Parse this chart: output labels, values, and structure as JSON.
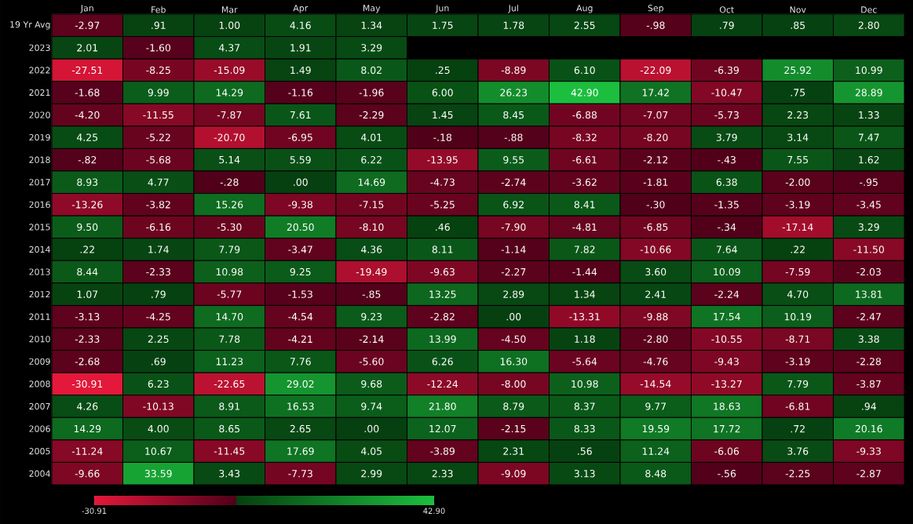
{
  "chart_data": {
    "type": "heatmap",
    "categories": [
      "Jan",
      "Feb",
      "Mar",
      "Apr",
      "May",
      "Jun",
      "Jul",
      "Aug",
      "Sep",
      "Oct",
      "Nov",
      "Dec"
    ],
    "y_categories": [
      "19 Yr Avg",
      "2023",
      "2022",
      "2021",
      "2020",
      "2019",
      "2018",
      "2017",
      "2016",
      "2015",
      "2014",
      "2013",
      "2012",
      "2011",
      "2010",
      "2009",
      "2008",
      "2007",
      "2006",
      "2005",
      "2004"
    ],
    "cells": [
      [
        -2.97,
        0.91,
        1.0,
        4.16,
        1.34,
        1.75,
        1.78,
        2.55,
        -0.98,
        0.79,
        0.85,
        2.8
      ],
      [
        2.01,
        -1.6,
        4.37,
        1.91,
        3.29,
        null,
        null,
        null,
        null,
        null,
        null,
        null
      ],
      [
        -27.51,
        -8.25,
        -15.09,
        1.49,
        8.02,
        0.25,
        -8.89,
        6.1,
        -22.09,
        -6.39,
        25.92,
        10.99
      ],
      [
        -1.68,
        9.99,
        14.29,
        -1.16,
        -1.96,
        6.0,
        26.23,
        42.9,
        17.42,
        -10.47,
        0.75,
        28.89
      ],
      [
        -4.2,
        -11.55,
        -7.87,
        7.61,
        -2.29,
        1.45,
        8.45,
        -6.88,
        -7.07,
        -5.73,
        2.23,
        1.33
      ],
      [
        4.25,
        -5.22,
        -20.7,
        -6.95,
        4.01,
        -0.18,
        -0.88,
        -8.32,
        -8.2,
        3.79,
        3.14,
        7.47
      ],
      [
        -0.82,
        -5.68,
        5.14,
        5.59,
        6.22,
        -13.95,
        9.55,
        -6.61,
        -2.12,
        -0.43,
        7.55,
        1.62
      ],
      [
        8.93,
        4.77,
        -0.28,
        0.0,
        14.69,
        -4.73,
        -2.74,
        -3.62,
        -1.81,
        6.38,
        -2.0,
        -0.95
      ],
      [
        -13.26,
        -3.82,
        15.26,
        -9.38,
        -7.15,
        -5.25,
        6.92,
        8.41,
        -0.3,
        -1.35,
        -3.19,
        -3.45
      ],
      [
        9.5,
        -6.16,
        -5.3,
        20.5,
        -8.1,
        0.46,
        -7.9,
        -4.81,
        -6.85,
        -0.34,
        -17.14,
        3.29
      ],
      [
        0.22,
        1.74,
        7.79,
        -3.47,
        4.36,
        8.11,
        -1.14,
        7.82,
        -10.66,
        7.64,
        0.22,
        -11.5
      ],
      [
        8.44,
        -2.33,
        10.98,
        9.25,
        -19.49,
        -9.63,
        -2.27,
        -1.44,
        3.6,
        10.09,
        -7.59,
        -2.03
      ],
      [
        1.07,
        0.79,
        -5.77,
        -1.53,
        -0.85,
        13.25,
        2.89,
        1.34,
        2.41,
        -2.24,
        4.7,
        13.81
      ],
      [
        -3.13,
        -4.25,
        14.7,
        -4.54,
        9.23,
        -2.82,
        0.0,
        -13.31,
        -9.88,
        17.54,
        10.19,
        -2.47
      ],
      [
        -2.33,
        2.25,
        7.78,
        -4.21,
        -2.14,
        13.99,
        -4.5,
        1.18,
        -2.8,
        -10.55,
        -8.71,
        3.38
      ],
      [
        -2.68,
        0.69,
        11.23,
        7.76,
        -5.6,
        6.26,
        16.3,
        -5.64,
        -4.76,
        -9.43,
        -3.19,
        -2.28
      ],
      [
        -30.91,
        6.23,
        -22.65,
        29.02,
        9.68,
        -12.24,
        -8.0,
        10.98,
        -14.54,
        -13.27,
        7.79,
        -3.87
      ],
      [
        4.26,
        -10.13,
        8.91,
        16.53,
        9.74,
        21.8,
        8.79,
        8.37,
        9.77,
        18.63,
        -6.81,
        0.94
      ],
      [
        14.29,
        4.0,
        8.65,
        2.65,
        0.0,
        12.07,
        -2.15,
        8.33,
        19.59,
        17.72,
        0.72,
        20.16
      ],
      [
        -11.24,
        10.67,
        -11.45,
        17.69,
        4.05,
        -3.89,
        2.31,
        0.56,
        11.24,
        -6.06,
        3.76,
        -9.33
      ],
      [
        -9.66,
        33.59,
        3.43,
        -7.73,
        2.99,
        2.33,
        -9.09,
        3.13,
        8.48,
        -0.56,
        -2.25,
        -2.87
      ]
    ],
    "cell_labels": [
      [
        "-2.97",
        ".91",
        "1.00",
        "4.16",
        "1.34",
        "1.75",
        "1.78",
        "2.55",
        "-.98",
        ".79",
        ".85",
        "2.80"
      ],
      [
        "2.01",
        "-1.60",
        "4.37",
        "1.91",
        "3.29",
        null,
        null,
        null,
        null,
        null,
        null,
        null
      ],
      [
        "-27.51",
        "-8.25",
        "-15.09",
        "1.49",
        "8.02",
        ".25",
        "-8.89",
        "6.10",
        "-22.09",
        "-6.39",
        "25.92",
        "10.99"
      ],
      [
        "-1.68",
        "9.99",
        "14.29",
        "-1.16",
        "-1.96",
        "6.00",
        "26.23",
        "42.90",
        "17.42",
        "-10.47",
        ".75",
        "28.89"
      ],
      [
        "-4.20",
        "-11.55",
        "-7.87",
        "7.61",
        "-2.29",
        "1.45",
        "8.45",
        "-6.88",
        "-7.07",
        "-5.73",
        "2.23",
        "1.33"
      ],
      [
        "4.25",
        "-5.22",
        "-20.70",
        "-6.95",
        "4.01",
        "-.18",
        "-.88",
        "-8.32",
        "-8.20",
        "3.79",
        "3.14",
        "7.47"
      ],
      [
        "-.82",
        "-5.68",
        "5.14",
        "5.59",
        "6.22",
        "-13.95",
        "9.55",
        "-6.61",
        "-2.12",
        "-.43",
        "7.55",
        "1.62"
      ],
      [
        "8.93",
        "4.77",
        "-.28",
        ".00",
        "14.69",
        "-4.73",
        "-2.74",
        "-3.62",
        "-1.81",
        "6.38",
        "-2.00",
        "-.95"
      ],
      [
        "-13.26",
        "-3.82",
        "15.26",
        "-9.38",
        "-7.15",
        "-5.25",
        "6.92",
        "8.41",
        "-.30",
        "-1.35",
        "-3.19",
        "-3.45"
      ],
      [
        "9.50",
        "-6.16",
        "-5.30",
        "20.50",
        "-8.10",
        ".46",
        "-7.90",
        "-4.81",
        "-6.85",
        "-.34",
        "-17.14",
        "3.29"
      ],
      [
        ".22",
        "1.74",
        "7.79",
        "-3.47",
        "4.36",
        "8.11",
        "-1.14",
        "7.82",
        "-10.66",
        "7.64",
        ".22",
        "-11.50"
      ],
      [
        "8.44",
        "-2.33",
        "10.98",
        "9.25",
        "-19.49",
        "-9.63",
        "-2.27",
        "-1.44",
        "3.60",
        "10.09",
        "-7.59",
        "-2.03"
      ],
      [
        "1.07",
        ".79",
        "-5.77",
        "-1.53",
        "-.85",
        "13.25",
        "2.89",
        "1.34",
        "2.41",
        "-2.24",
        "4.70",
        "13.81"
      ],
      [
        "-3.13",
        "-4.25",
        "14.70",
        "-4.54",
        "9.23",
        "-2.82",
        ".00",
        "-13.31",
        "-9.88",
        "17.54",
        "10.19",
        "-2.47"
      ],
      [
        "-2.33",
        "2.25",
        "7.78",
        "-4.21",
        "-2.14",
        "13.99",
        "-4.50",
        "1.18",
        "-2.80",
        "-10.55",
        "-8.71",
        "3.38"
      ],
      [
        "-2.68",
        ".69",
        "11.23",
        "7.76",
        "-5.60",
        "6.26",
        "16.30",
        "-5.64",
        "-4.76",
        "-9.43",
        "-3.19",
        "-2.28"
      ],
      [
        "-30.91",
        "6.23",
        "-22.65",
        "29.02",
        "9.68",
        "-12.24",
        "-8.00",
        "10.98",
        "-14.54",
        "-13.27",
        "7.79",
        "-3.87"
      ],
      [
        "4.26",
        "-10.13",
        "8.91",
        "16.53",
        "9.74",
        "21.80",
        "8.79",
        "8.37",
        "9.77",
        "18.63",
        "-6.81",
        ".94"
      ],
      [
        "14.29",
        "4.00",
        "8.65",
        "2.65",
        ".00",
        "12.07",
        "-2.15",
        "8.33",
        "19.59",
        "17.72",
        ".72",
        "20.16"
      ],
      [
        "-11.24",
        "10.67",
        "-11.45",
        "17.69",
        "4.05",
        "-3.89",
        "2.31",
        ".56",
        "11.24",
        "-6.06",
        "3.76",
        "-9.33"
      ],
      [
        "-9.66",
        "33.59",
        "3.43",
        "-7.73",
        "2.99",
        "2.33",
        "-9.09",
        "3.13",
        "8.48",
        "-.56",
        "-2.25",
        "-2.87"
      ]
    ],
    "clim": [
      -30.91,
      42.9
    ],
    "cticks": [
      {
        "value": -30.91,
        "label": "-30.91"
      },
      {
        "value": 42.9,
        "label": "42.90"
      }
    ]
  }
}
